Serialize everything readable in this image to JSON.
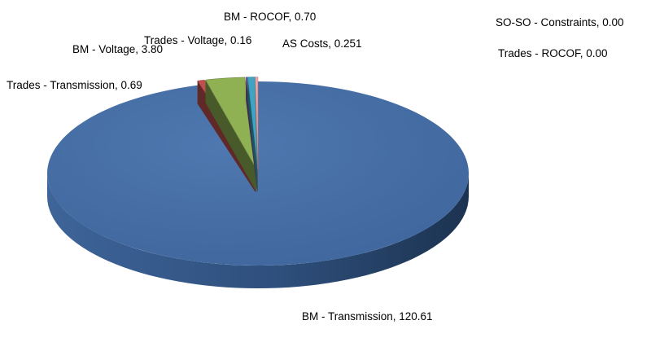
{
  "chart_data": {
    "type": "pie",
    "three_d": true,
    "legend": "none",
    "slices": [
      {
        "label": "BM - Transmission",
        "value": 120.61,
        "color": "#4A72A8"
      },
      {
        "label": "Trades - Transmission",
        "value": 0.69,
        "color": "#C0504D"
      },
      {
        "label": "BM - Voltage",
        "value": 3.8,
        "color": "#8FB153"
      },
      {
        "label": "Trades - Voltage",
        "value": 0.16,
        "color": "#7A5CA0"
      },
      {
        "label": "BM - ROCOF",
        "value": 0.7,
        "color": "#3FA4C4"
      },
      {
        "label": "AS Costs",
        "value": 0.251,
        "color": "#F2A7A4"
      },
      {
        "label": "SO-SO - Constraints",
        "value": 0.0,
        "color": "#A6BDDB"
      },
      {
        "label": "Trades - ROCOF",
        "value": 0.0,
        "color": "#D99694"
      }
    ],
    "data_labels": [
      {
        "name": "label-bm-transmission",
        "text": "BM - Transmission, 120.61"
      },
      {
        "name": "label-trades-transmission",
        "text": "Trades - Transmission, 0.69"
      },
      {
        "name": "label-bm-voltage",
        "text": "BM - Voltage, 3.80"
      },
      {
        "name": "label-trades-voltage",
        "text": "Trades - Voltage, 0.16"
      },
      {
        "name": "label-bm-rocof",
        "text": "BM - ROCOF, 0.70"
      },
      {
        "name": "label-as-costs",
        "text": "AS Costs, 0.251"
      },
      {
        "name": "label-so-so-constraints",
        "text": "SO-SO - Constraints, 0.00"
      },
      {
        "name": "label-trades-rocof",
        "text": "Trades - ROCOF, 0.00"
      }
    ]
  }
}
